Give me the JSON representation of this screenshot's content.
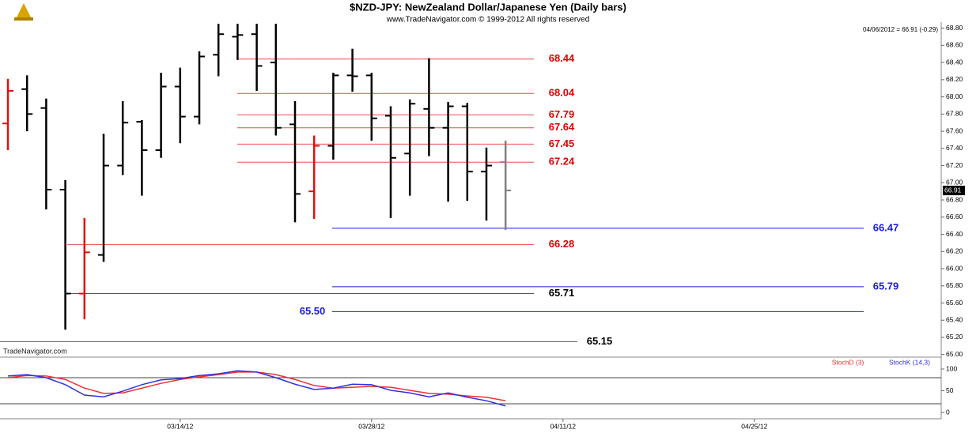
{
  "chart_data": {
    "type": "ohlc",
    "title": "$NZD-JPY:  NewZealand Dollar/Japanese Yen  (Daily bars)",
    "subtitle": "www.TradeNavigator.com © 1999-2012 All rights reserved",
    "info": "04/06/2012 = 66.91 (-0.29)",
    "watermark": "TradeNavigator.com",
    "categories": [
      null,
      null,
      null,
      null,
      null,
      null,
      null,
      null,
      null,
      "03/14/12",
      null,
      null,
      null,
      null,
      null,
      null,
      null,
      null,
      null,
      "03/28/12",
      null,
      null,
      null,
      null,
      null,
      null,
      null,
      null,
      null,
      "04/11/12",
      null,
      null,
      null,
      null,
      null,
      null,
      null,
      null,
      null,
      "04/25/12",
      null,
      null,
      null,
      null,
      null,
      null,
      null,
      null,
      null
    ],
    "open": [
      67.69,
      68.09,
      67.87,
      66.92,
      65.71,
      66.16,
      67.2,
      67.71,
      67.38,
      68.12,
      67.77,
      68.49,
      68.7,
      68.73,
      68.4,
      67.68,
      66.9,
      67.43,
      68.25,
      68.25,
      67.78,
      67.34,
      67.86,
      67.64,
      67.89,
      67.13,
      67.24,
      null,
      null,
      null,
      null,
      null,
      null,
      null,
      null,
      null,
      null,
      null,
      null,
      null,
      null,
      null,
      null,
      null,
      null,
      null,
      null,
      null,
      null
    ],
    "high": [
      68.21,
      68.25,
      67.98,
      67.03,
      66.59,
      67.57,
      67.95,
      67.73,
      68.28,
      68.34,
      68.53,
      68.85,
      68.85,
      68.85,
      68.85,
      67.95,
      67.55,
      68.28,
      68.56,
      68.28,
      67.89,
      67.97,
      68.45,
      67.94,
      67.93,
      67.41,
      67.49,
      null,
      null,
      null,
      null,
      null,
      null,
      null,
      null,
      null,
      null,
      null,
      null,
      null,
      null,
      null,
      null,
      null,
      null,
      null,
      null,
      null,
      null
    ],
    "low": [
      67.38,
      67.6,
      66.69,
      65.29,
      65.41,
      66.08,
      67.09,
      66.85,
      67.29,
      67.46,
      67.68,
      68.24,
      68.43,
      68.07,
      67.55,
      66.54,
      66.58,
      67.27,
      68.06,
      67.49,
      66.59,
      66.85,
      67.31,
      66.78,
      66.79,
      66.56,
      66.45,
      null,
      null,
      null,
      null,
      null,
      null,
      null,
      null,
      null,
      null,
      null,
      null,
      null,
      null,
      null,
      null,
      null,
      null,
      null,
      null,
      null,
      null
    ],
    "close": [
      68.07,
      67.8,
      66.92,
      65.71,
      66.19,
      67.2,
      67.7,
      67.38,
      68.12,
      67.77,
      68.47,
      68.73,
      68.72,
      68.36,
      67.64,
      66.87,
      67.43,
      68.25,
      68.24,
      67.75,
      67.29,
      67.92,
      67.64,
      67.89,
      67.13,
      67.2,
      66.91,
      null,
      null,
      null,
      null,
      null,
      null,
      null,
      null,
      null,
      null,
      null,
      null,
      null,
      null,
      null,
      null,
      null,
      null,
      null,
      null,
      null,
      null
    ],
    "colors": [
      "#e01010",
      "#000000",
      "#000000",
      "#000000",
      "#e01010",
      "#000000",
      "#000000",
      "#000000",
      "#000000",
      "#000000",
      "#000000",
      "#000000",
      "#000000",
      "#000000",
      "#000000",
      "#000000",
      "#e01010",
      "#000000",
      "#000000",
      "#000000",
      "#000000",
      "#000000",
      "#000000",
      "#000000",
      "#000000",
      "#000000",
      "#808080",
      null,
      null,
      null,
      null,
      null,
      null,
      null,
      null,
      null,
      null,
      null,
      null,
      null,
      null,
      null,
      null,
      null,
      null,
      null,
      null,
      null,
      null
    ],
    "ylim": [
      64.97,
      68.87
    ],
    "yticks": [
      {
        "value": 65,
        "label": "65.00"
      },
      {
        "value": 65.2,
        "label": "65.20"
      },
      {
        "value": 65.4,
        "label": "65.40"
      },
      {
        "value": 65.6,
        "label": "65.60"
      },
      {
        "value": 65.8,
        "label": "65.80"
      },
      {
        "value": 66,
        "label": "66.00"
      },
      {
        "value": 66.2,
        "label": "66.20"
      },
      {
        "value": 66.4,
        "label": "66.40"
      },
      {
        "value": 66.6,
        "label": "66.60"
      },
      {
        "value": 66.8,
        "label": "66.80"
      },
      {
        "value": 67,
        "label": "67.00"
      },
      {
        "value": 67.2,
        "label": "67.20"
      },
      {
        "value": 67.4,
        "label": "67.40"
      },
      {
        "value": 67.6,
        "label": "67.60"
      },
      {
        "value": 67.8,
        "label": "67.80"
      },
      {
        "value": 68,
        "label": "68.00"
      },
      {
        "value": 68.2,
        "label": "68.20"
      },
      {
        "value": 68.4,
        "label": "68.40"
      },
      {
        "value": 68.6,
        "label": "68.60"
      },
      {
        "value": 68.8,
        "label": "68.80"
      }
    ],
    "levels": [
      {
        "value": 68.44,
        "color": "#e00000"
      },
      {
        "value": 68.04,
        "color": "#e00000"
      },
      {
        "value": 67.79,
        "color": "#e00000"
      },
      {
        "value": 67.64,
        "color": "#e00000"
      },
      {
        "value": 67.45,
        "color": "#e00000"
      },
      {
        "value": 67.24,
        "color": "#e00000"
      },
      {
        "value": 66.28,
        "color": "#e00000"
      },
      {
        "value": 65.71,
        "color": "#000000"
      },
      {
        "value": 65.15,
        "color": "#000000"
      },
      {
        "value": 66.47,
        "color": "#1a1ae0"
      },
      {
        "value": 65.79,
        "color": "#1a1ae0"
      },
      {
        "value": 65.5,
        "label": "65.50",
        "color": "#1a1ae0"
      }
    ],
    "stoch": {
      "ylim": [
        -14.5,
        127.3
      ],
      "yticks": [
        0,
        50,
        100
      ],
      "levels": [
        20,
        80
      ],
      "series": [
        {
          "name": "StochD (3)",
          "color": "#f03030",
          "values": [
            80,
            85,
            84,
            76,
            56,
            44,
            45,
            56,
            67,
            76,
            82,
            87,
            93,
            93,
            87,
            76,
            62,
            56,
            58,
            60,
            58,
            51,
            44,
            42,
            38,
            35,
            27,
            null,
            null,
            null,
            null,
            null,
            null,
            null,
            null,
            null,
            null,
            null,
            null,
            null,
            null,
            null,
            null,
            null,
            null,
            null,
            null,
            null,
            null
          ]
        },
        {
          "name": "StochK (14,3)",
          "color": "#3030e0",
          "values": [
            84,
            87,
            80,
            64,
            40,
            36,
            49,
            64,
            75,
            78,
            85,
            89,
            96,
            93,
            80,
            65,
            53,
            56,
            65,
            64,
            51,
            45,
            36,
            45,
            35,
            27,
            15,
            null,
            null,
            null,
            null,
            null,
            null,
            null,
            null,
            null,
            null,
            null,
            null,
            null,
            null,
            null,
            null,
            null,
            null,
            null,
            null,
            null,
            null
          ]
        }
      ]
    }
  }
}
